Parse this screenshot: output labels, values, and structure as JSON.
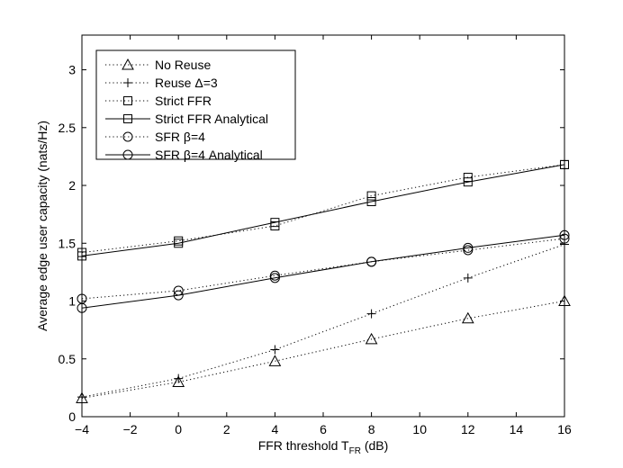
{
  "chart_data": {
    "type": "line",
    "xlabel": "FFR threshold T",
    "xlabel_sub": "FR",
    "xlabel_unit": " (dB)",
    "ylabel": "Average edge user capacity (nats/Hz)",
    "xlim": [
      -4,
      16
    ],
    "ylim": [
      0,
      3.3
    ],
    "xticks": [
      -4,
      -2,
      0,
      2,
      4,
      6,
      8,
      10,
      12,
      14,
      16
    ],
    "xtick_labels": [
      "−4",
      "−2",
      "0",
      "2",
      "4",
      "6",
      "8",
      "10",
      "12",
      "14",
      "16"
    ],
    "yticks": [
      0,
      0.5,
      1,
      1.5,
      2,
      2.5,
      3
    ],
    "ytick_labels": [
      "0",
      "0.5",
      "1",
      "1.5",
      "2",
      "2.5",
      "3"
    ],
    "grid": false,
    "legend_position": "top-left",
    "x": [
      -4,
      0,
      4,
      8,
      12,
      16
    ],
    "series": [
      {
        "name": "No Reuse",
        "marker": "triangle",
        "line": "dotted",
        "values": [
          0.16,
          0.3,
          0.48,
          0.67,
          0.85,
          1.0
        ]
      },
      {
        "name": "Reuse Δ=3",
        "marker": "plus",
        "line": "dotted",
        "values": [
          0.17,
          0.33,
          0.58,
          0.89,
          1.2,
          1.49
        ]
      },
      {
        "name": "Strict FFR",
        "marker": "square",
        "line": "dotted",
        "values": [
          1.42,
          1.52,
          1.65,
          1.91,
          2.07,
          2.18
        ]
      },
      {
        "name": "Strict FFR Analytical",
        "marker": "square",
        "line": "solid",
        "values": [
          1.39,
          1.5,
          1.68,
          1.86,
          2.03,
          2.18
        ]
      },
      {
        "name": "SFR β=4",
        "marker": "circle",
        "line": "dotted",
        "values": [
          1.02,
          1.09,
          1.22,
          1.34,
          1.44,
          1.54
        ]
      },
      {
        "name": "SFR β=4 Analytical",
        "marker": "circle",
        "line": "solid",
        "values": [
          0.94,
          1.05,
          1.2,
          1.34,
          1.46,
          1.57
        ]
      }
    ]
  }
}
